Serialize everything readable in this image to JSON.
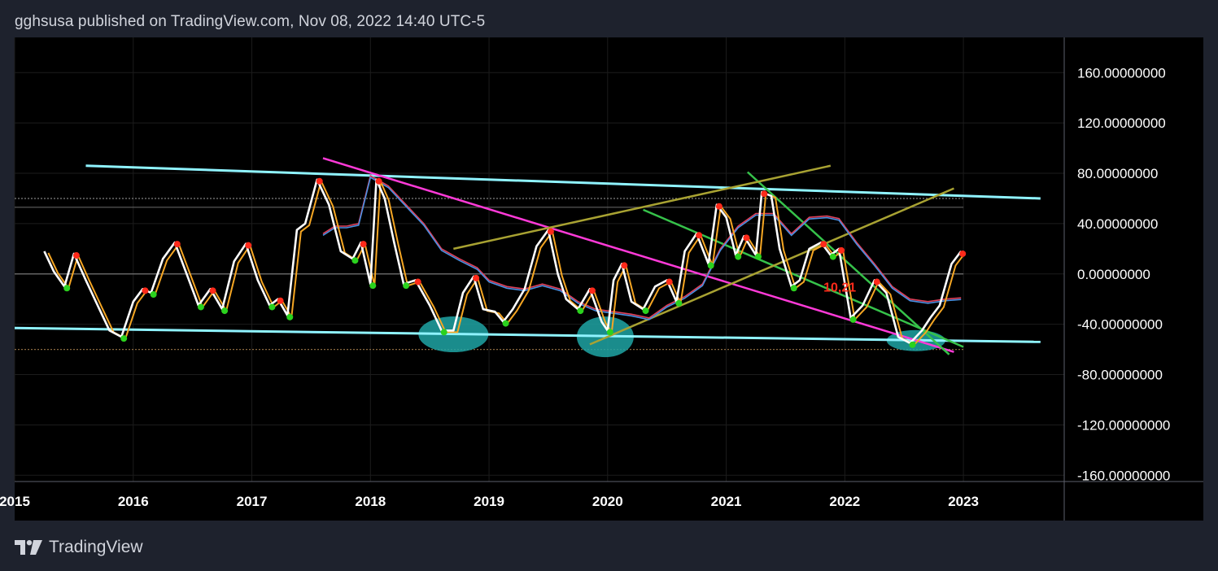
{
  "header": {
    "text": "gghsusa published on TradingView.com, Nov 08, 2022 14:40 UTC-5"
  },
  "footer": {
    "brand": "TradingView"
  },
  "colors": {
    "background": "#000000",
    "page": "#1e222d",
    "oscillator": "#ffffff",
    "signal": "#f5a623",
    "slow_ma_red": "#e0405a",
    "slow_ma_blue": "#4a90e2",
    "cyan_trend": "#8ff3ff",
    "magenta_trend": "#ff3ad8",
    "green_trend": "#36c24a",
    "olive_trend": "#a8a232",
    "highlight": "#1fa5a5",
    "peak_marker": "#ff2a1a",
    "trough_marker": "#2bd21e"
  },
  "chart_data": {
    "type": "line",
    "title": "",
    "xlabel": "",
    "ylabel": "",
    "xlim": [
      2015.0,
      2023.85
    ],
    "ylim": [
      -165,
      188
    ],
    "y_ticks": [
      {
        "value": 160,
        "label": "160.00000000"
      },
      {
        "value": 120,
        "label": "120.00000000"
      },
      {
        "value": 80,
        "label": "80.00000000"
      },
      {
        "value": 40,
        "label": "40.00000000"
      },
      {
        "value": 0,
        "label": "0.00000000"
      },
      {
        "value": -40,
        "label": "-40.00000000"
      },
      {
        "value": -80,
        "label": "-80.00000000"
      },
      {
        "value": -120,
        "label": "-120.00000000"
      },
      {
        "value": -160,
        "label": "-160.00000000"
      }
    ],
    "x_ticks": [
      {
        "value": 2015,
        "label": "2015"
      },
      {
        "value": 2016,
        "label": "2016"
      },
      {
        "value": 2017,
        "label": "2017"
      },
      {
        "value": 2018,
        "label": "2018"
      },
      {
        "value": 2019,
        "label": "2019"
      },
      {
        "value": 2020,
        "label": "2020"
      },
      {
        "value": 2021,
        "label": "2021"
      },
      {
        "value": 2022,
        "label": "2022"
      },
      {
        "value": 2023,
        "label": "2023"
      }
    ],
    "grid": true,
    "reference_lines": [
      {
        "y": 60,
        "style": "dotted",
        "color": "#808080"
      },
      {
        "y": 53,
        "style": "solid",
        "color": "#606060"
      },
      {
        "y": 0,
        "style": "solid",
        "color": "#808080"
      },
      {
        "y": -60,
        "style": "dotted",
        "color": "#8a6a40"
      }
    ],
    "series": [
      {
        "role": "oscillator",
        "color": "#ffffff",
        "points": [
          [
            2015.25,
            18
          ],
          [
            2015.33,
            2
          ],
          [
            2015.42,
            -10
          ],
          [
            2015.5,
            16
          ],
          [
            2015.6,
            -5
          ],
          [
            2015.7,
            -25
          ],
          [
            2015.8,
            -45
          ],
          [
            2015.9,
            -50
          ],
          [
            2016.0,
            -22
          ],
          [
            2016.08,
            -12
          ],
          [
            2016.15,
            -15
          ],
          [
            2016.25,
            12
          ],
          [
            2016.35,
            25
          ],
          [
            2016.45,
            0
          ],
          [
            2016.55,
            -25
          ],
          [
            2016.65,
            -12
          ],
          [
            2016.75,
            -28
          ],
          [
            2016.85,
            10
          ],
          [
            2016.95,
            24
          ],
          [
            2017.05,
            -5
          ],
          [
            2017.15,
            -25
          ],
          [
            2017.22,
            -20
          ],
          [
            2017.3,
            -33
          ],
          [
            2017.38,
            35
          ],
          [
            2017.45,
            40
          ],
          [
            2017.55,
            75
          ],
          [
            2017.65,
            55
          ],
          [
            2017.75,
            18
          ],
          [
            2017.85,
            12
          ],
          [
            2017.92,
            25
          ],
          [
            2018.0,
            -8
          ],
          [
            2018.05,
            75
          ],
          [
            2018.12,
            60
          ],
          [
            2018.2,
            25
          ],
          [
            2018.28,
            -8
          ],
          [
            2018.38,
            -5
          ],
          [
            2018.5,
            -25
          ],
          [
            2018.6,
            -45
          ],
          [
            2018.7,
            -45
          ],
          [
            2018.78,
            -15
          ],
          [
            2018.87,
            -2
          ],
          [
            2018.95,
            -28
          ],
          [
            2019.05,
            -30
          ],
          [
            2019.12,
            -38
          ],
          [
            2019.2,
            -28
          ],
          [
            2019.3,
            -12
          ],
          [
            2019.4,
            22
          ],
          [
            2019.5,
            35
          ],
          [
            2019.58,
            0
          ],
          [
            2019.65,
            -20
          ],
          [
            2019.75,
            -28
          ],
          [
            2019.85,
            -12
          ],
          [
            2019.95,
            -38
          ],
          [
            2020.0,
            -45
          ],
          [
            2020.05,
            -5
          ],
          [
            2020.12,
            8
          ],
          [
            2020.2,
            -22
          ],
          [
            2020.3,
            -28
          ],
          [
            2020.4,
            -10
          ],
          [
            2020.5,
            -5
          ],
          [
            2020.58,
            -22
          ],
          [
            2020.65,
            18
          ],
          [
            2020.75,
            32
          ],
          [
            2020.85,
            8
          ],
          [
            2020.92,
            55
          ],
          [
            2021.0,
            45
          ],
          [
            2021.08,
            15
          ],
          [
            2021.15,
            30
          ],
          [
            2021.25,
            15
          ],
          [
            2021.3,
            65
          ],
          [
            2021.38,
            62
          ],
          [
            2021.45,
            20
          ],
          [
            2021.55,
            -10
          ],
          [
            2021.62,
            -5
          ],
          [
            2021.7,
            20
          ],
          [
            2021.8,
            25
          ],
          [
            2021.88,
            15
          ],
          [
            2021.95,
            20
          ],
          [
            2022.05,
            -35
          ],
          [
            2022.15,
            -25
          ],
          [
            2022.25,
            -5
          ],
          [
            2022.35,
            -15
          ],
          [
            2022.45,
            -50
          ],
          [
            2022.55,
            -55
          ],
          [
            2022.65,
            -45
          ],
          [
            2022.72,
            -35
          ],
          [
            2022.8,
            -25
          ],
          [
            2022.9,
            8
          ],
          [
            2022.98,
            18
          ]
        ]
      },
      {
        "role": "slow_ma",
        "color": "#e0405a",
        "points": [
          [
            2017.6,
            32
          ],
          [
            2017.7,
            38
          ],
          [
            2017.8,
            38
          ],
          [
            2017.9,
            40
          ],
          [
            2018.0,
            78
          ],
          [
            2018.15,
            70
          ],
          [
            2018.3,
            55
          ],
          [
            2018.45,
            40
          ],
          [
            2018.6,
            20
          ],
          [
            2018.75,
            12
          ],
          [
            2018.9,
            5
          ],
          [
            2019.0,
            -5
          ],
          [
            2019.15,
            -10
          ],
          [
            2019.3,
            -12
          ],
          [
            2019.45,
            -8
          ],
          [
            2019.6,
            -12
          ],
          [
            2019.75,
            -22
          ],
          [
            2019.9,
            -28
          ],
          [
            2020.05,
            -30
          ],
          [
            2020.2,
            -32
          ],
          [
            2020.35,
            -35
          ],
          [
            2020.5,
            -25
          ],
          [
            2020.65,
            -18
          ],
          [
            2020.8,
            -8
          ],
          [
            2020.95,
            20
          ],
          [
            2021.1,
            38
          ],
          [
            2021.25,
            48
          ],
          [
            2021.4,
            48
          ],
          [
            2021.55,
            32
          ],
          [
            2021.7,
            45
          ],
          [
            2021.85,
            46
          ],
          [
            2021.95,
            44
          ],
          [
            2022.1,
            25
          ],
          [
            2022.25,
            8
          ],
          [
            2022.4,
            -10
          ],
          [
            2022.55,
            -20
          ],
          [
            2022.7,
            -22
          ],
          [
            2022.85,
            -20
          ],
          [
            2022.98,
            -19
          ]
        ]
      }
    ],
    "annotations": [
      {
        "text": "10,21",
        "x": 2021.82,
        "y": -10,
        "color": "#ff2a1a"
      }
    ],
    "highlights": [
      {
        "x": 2018.7,
        "y": -48
      },
      {
        "x": 2019.98,
        "y": -50
      },
      {
        "x": 2022.6,
        "y": -53
      }
    ]
  }
}
